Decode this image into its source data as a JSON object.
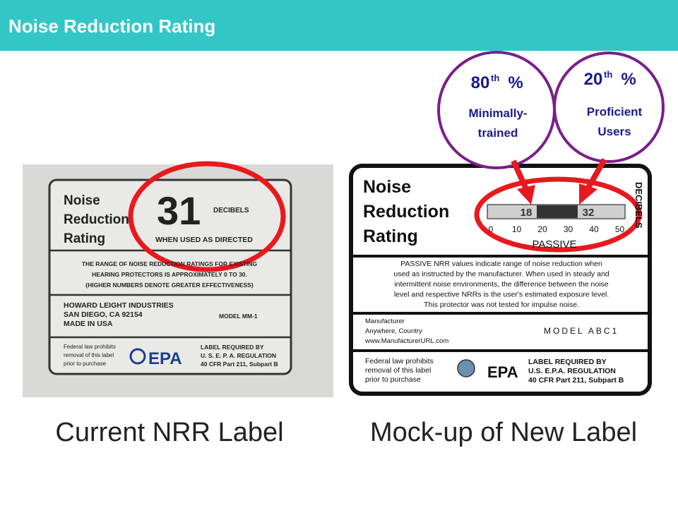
{
  "header": {
    "title": "Noise Reduction Rating"
  },
  "callouts": [
    {
      "number": "80",
      "suffix": "th",
      "symbol": "%",
      "lines": [
        "Minimally-",
        "trained"
      ]
    },
    {
      "number": "20",
      "suffix": "th",
      "symbol": "%",
      "lines": [
        "Proficient",
        "Users"
      ]
    }
  ],
  "current_label": {
    "title_lines": [
      "Noise",
      "Reduction",
      "Rating"
    ],
    "rating": "31",
    "unit": "DECIBELS",
    "condition": "WHEN USED AS DIRECTED",
    "range_lines": [
      "THE RANGE OF NOISE REDUCTION RATINGS FOR EXISTING",
      "HEARING PROTECTORS IS APPROXIMATELY 0 TO 30.",
      "(HIGHER NUMBERS DENOTE GREATER EFFECTIVENESS)"
    ],
    "manufacturer_lines": [
      "HOWARD LEIGHT INDUSTRIES",
      "SAN DIEGO, CA 92154",
      "MADE IN USA"
    ],
    "model": "MODEL MM-1",
    "warning_lines": [
      "Federal law prohibits",
      "removal of this label",
      "prior to purchase"
    ],
    "agency": "EPA",
    "regulation_lines": [
      "LABEL REQUIRED BY",
      "U. S. E. P. A. REGULATION",
      "40 CFR Part 211, Subpart B"
    ],
    "caption": "Current NRR Label"
  },
  "new_label": {
    "title_lines": [
      "Noise",
      "Reduction",
      "Rating"
    ],
    "range_low": "18",
    "range_high": "32",
    "scale_ticks": [
      "0",
      "10",
      "20",
      "30",
      "40",
      "50"
    ],
    "unit": "DECIBELS",
    "mode": "PASSIVE",
    "description_lines": [
      "PASSIVE NRR values indicate range of noise reduction when",
      "used as instructed by the manufacturer. When used in steady and",
      "intermittent noise environments, the difference between the noise",
      "level and respective NRRs is the user's estimated exposure level.",
      "This protector was not tested for impulse noise."
    ],
    "manufacturer_lines": [
      "Manufacturer",
      "Anywhere, Country",
      "www.ManufacturerURL.com"
    ],
    "model": "MODEL ABC1",
    "warning_lines": [
      "Federal law prohibits",
      "removal of this label",
      "prior to purchase"
    ],
    "agency": "EPA",
    "regulation_lines": [
      "LABEL REQUIRED BY",
      "U.S. E.P.A. REGULATION",
      "40 CFR Part 211, Subpart B"
    ],
    "caption": "Mock-up of New Label"
  }
}
